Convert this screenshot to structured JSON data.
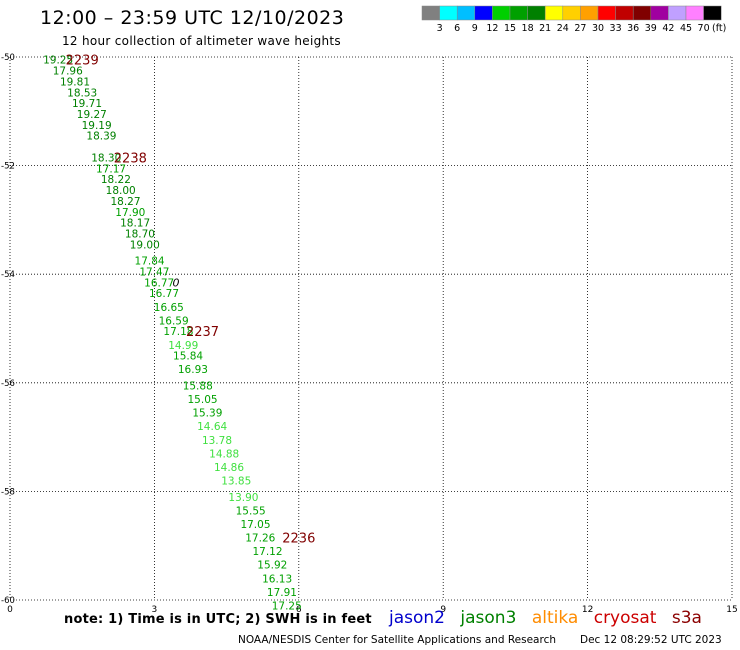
{
  "header": {
    "title": "12:00 – 23:59 UTC 12/10/2023",
    "subtitle": "12 hour collection of altimeter wave heights"
  },
  "colorbar": {
    "colors": [
      "#808080",
      "#00ffff",
      "#00bfff",
      "#0000ff",
      "#00d000",
      "#00a000",
      "#008000",
      "#ffff00",
      "#ffd000",
      "#ffa000",
      "#ff0000",
      "#c00000",
      "#800000",
      "#a000a0",
      "#c0a0ff",
      "#ff80ff",
      "#000000"
    ],
    "labels": [
      "3",
      "6",
      "9",
      "12",
      "15",
      "18",
      "21",
      "24",
      "27",
      "30",
      "33",
      "36",
      "39",
      "42",
      "45",
      "70"
    ],
    "unit": "(ft)"
  },
  "chart_data": {
    "type": "scatter",
    "title": "12:00 – 23:59 UTC 12/10/2023",
    "subtitle": "12 hour collection of altimeter wave heights",
    "xlim": [
      0,
      15
    ],
    "ylim": [
      -60,
      -50
    ],
    "x_ticks": [
      "0",
      "3",
      "6",
      "9",
      "12",
      "15"
    ],
    "y_ticks": [
      "-50",
      "-52",
      "-54",
      "-56",
      "-58",
      "-60"
    ],
    "grid": true,
    "points": [
      {
        "x": 1.0,
        "y": -50.05,
        "swh": "19.25",
        "color": "#008000"
      },
      {
        "x": 1.2,
        "y": -50.25,
        "swh": "17.96",
        "color": "#008000"
      },
      {
        "x": 1.35,
        "y": -50.45,
        "swh": "19.81",
        "color": "#008000"
      },
      {
        "x": 1.5,
        "y": -50.65,
        "swh": "18.53",
        "color": "#008000"
      },
      {
        "x": 1.6,
        "y": -50.85,
        "swh": "19.71",
        "color": "#008000"
      },
      {
        "x": 1.7,
        "y": -51.05,
        "swh": "19.27",
        "color": "#008000"
      },
      {
        "x": 1.8,
        "y": -51.25,
        "swh": "19.19",
        "color": "#008000"
      },
      {
        "x": 1.9,
        "y": -51.45,
        "swh": "18.39",
        "color": "#008000"
      },
      {
        "x": 2.0,
        "y": -51.85,
        "swh": "18.30",
        "color": "#008000"
      },
      {
        "x": 2.1,
        "y": -52.05,
        "swh": "17.17",
        "color": "#00a000"
      },
      {
        "x": 2.2,
        "y": -52.25,
        "swh": "18.22",
        "color": "#008000"
      },
      {
        "x": 2.3,
        "y": -52.45,
        "swh": "18.00",
        "color": "#008000"
      },
      {
        "x": 2.4,
        "y": -52.65,
        "swh": "18.27",
        "color": "#008000"
      },
      {
        "x": 2.5,
        "y": -52.85,
        "swh": "17.90",
        "color": "#00a000"
      },
      {
        "x": 2.6,
        "y": -53.05,
        "swh": "18.17",
        "color": "#008000"
      },
      {
        "x": 2.7,
        "y": -53.25,
        "swh": "18.70",
        "color": "#008000"
      },
      {
        "x": 2.8,
        "y": -53.45,
        "swh": "19.00",
        "color": "#008000"
      },
      {
        "x": 2.9,
        "y": -53.75,
        "swh": "17.84",
        "color": "#00a000"
      },
      {
        "x": 3.0,
        "y": -53.95,
        "swh": "17.47",
        "color": "#00a000"
      },
      {
        "x": 3.1,
        "y": -54.15,
        "swh": "16.77",
        "color": "#00a000"
      },
      {
        "x": 3.2,
        "y": -54.35,
        "swh": "16.77",
        "color": "#00a000"
      },
      {
        "x": 3.3,
        "y": -54.6,
        "swh": "16.65",
        "color": "#00a000"
      },
      {
        "x": 3.4,
        "y": -54.85,
        "swh": "16.59",
        "color": "#00a000"
      },
      {
        "x": 3.5,
        "y": -55.05,
        "swh": "17.18",
        "color": "#00a000"
      },
      {
        "x": 3.6,
        "y": -55.3,
        "swh": "14.99",
        "color": "#40e040"
      },
      {
        "x": 3.7,
        "y": -55.5,
        "swh": "15.84",
        "color": "#00a000"
      },
      {
        "x": 3.8,
        "y": -55.75,
        "swh": "16.93",
        "color": "#00a000"
      },
      {
        "x": 3.9,
        "y": -56.05,
        "swh": "15.88",
        "color": "#00a000"
      },
      {
        "x": 4.0,
        "y": -56.3,
        "swh": "15.05",
        "color": "#00a000"
      },
      {
        "x": 4.1,
        "y": -56.55,
        "swh": "15.39",
        "color": "#00a000"
      },
      {
        "x": 4.2,
        "y": -56.8,
        "swh": "14.64",
        "color": "#40e040"
      },
      {
        "x": 4.3,
        "y": -57.05,
        "swh": "13.78",
        "color": "#40e040"
      },
      {
        "x": 4.45,
        "y": -57.3,
        "swh": "14.88",
        "color": "#40e040"
      },
      {
        "x": 4.55,
        "y": -57.55,
        "swh": "14.86",
        "color": "#40e040"
      },
      {
        "x": 4.7,
        "y": -57.8,
        "swh": "13.85",
        "color": "#40e040"
      },
      {
        "x": 4.85,
        "y": -58.1,
        "swh": "13.90",
        "color": "#40e040"
      },
      {
        "x": 5.0,
        "y": -58.35,
        "swh": "15.55",
        "color": "#00a000"
      },
      {
        "x": 5.1,
        "y": -58.6,
        "swh": "17.05",
        "color": "#00a000"
      },
      {
        "x": 5.2,
        "y": -58.85,
        "swh": "17.26",
        "color": "#00a000"
      },
      {
        "x": 5.35,
        "y": -59.1,
        "swh": "17.12",
        "color": "#00a000"
      },
      {
        "x": 5.45,
        "y": -59.35,
        "swh": "15.92",
        "color": "#00a000"
      },
      {
        "x": 5.55,
        "y": -59.6,
        "swh": "16.13",
        "color": "#00a000"
      },
      {
        "x": 5.65,
        "y": -59.85,
        "swh": "17.91",
        "color": "#00a000"
      },
      {
        "x": 5.75,
        "y": -60.1,
        "swh": "17.25",
        "color": "#00a000"
      }
    ],
    "time_labels": [
      {
        "x": 1.5,
        "y": -50.05,
        "text": "2239"
      },
      {
        "x": 2.5,
        "y": -51.85,
        "text": "2238"
      },
      {
        "x": 4.0,
        "y": -55.05,
        "text": "2237"
      },
      {
        "x": 6.0,
        "y": -58.85,
        "text": "2236"
      }
    ],
    "marker": {
      "x": 3.45,
      "y": -54.15,
      "text": "0"
    }
  },
  "legend": {
    "satellites": [
      {
        "name": "jason2",
        "color": "#0000cc"
      },
      {
        "name": "jason3",
        "color": "#008000"
      },
      {
        "name": "altika",
        "color": "#ff8c00"
      },
      {
        "name": "cryosat",
        "color": "#cc0000"
      },
      {
        "name": "s3a",
        "color": "#8b0000"
      }
    ]
  },
  "footer": {
    "note": "note:  1) Time is in UTC; 2) SWH is in feet",
    "credit": "NOAA/NESDIS Center for Satellite Applications and Research",
    "timestamp": "Dec 12 08:29:52 UTC 2023"
  }
}
